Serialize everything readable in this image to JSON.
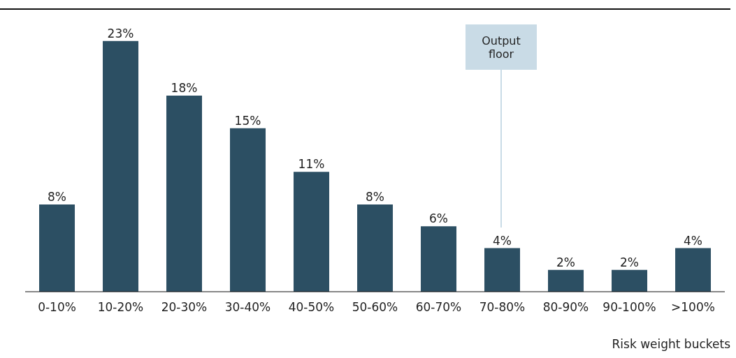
{
  "chart_data": {
    "type": "bar",
    "xlabel": "Risk weight buckets",
    "categories": [
      "0-10%",
      "10-20%",
      "20-30%",
      "30-40%",
      "40-50%",
      "50-60%",
      "60-70%",
      "70-80%",
      "80-90%",
      "90-100%",
      ">100%"
    ],
    "values": [
      8,
      23,
      18,
      15,
      11,
      8,
      6,
      4,
      2,
      2,
      4
    ],
    "value_labels": [
      "8%",
      "23%",
      "18%",
      "15%",
      "11%",
      "8%",
      "6%",
      "4%",
      "2%",
      "2%",
      "4%"
    ],
    "color": "#2c4f63",
    "ylim": [
      0,
      26
    ],
    "annotations": [
      "Output floor"
    ]
  }
}
